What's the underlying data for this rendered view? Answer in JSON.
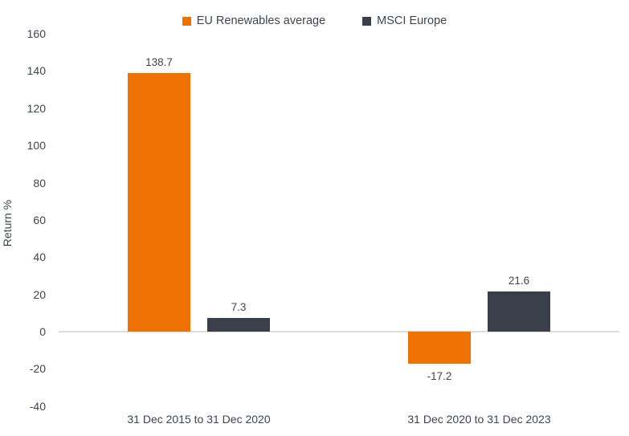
{
  "chart_data": {
    "type": "bar",
    "title": "",
    "categories": [
      "31 Dec 2015 to 31 Dec 2020",
      "31 Dec 2020 to 31 Dec 2023"
    ],
    "series": [
      {
        "name": "EU Renewables average",
        "color": "#ee7203",
        "values": [
          138.7,
          -17.2
        ]
      },
      {
        "name": "MSCI Europe",
        "color": "#3a3f4a",
        "values": [
          7.3,
          21.6
        ]
      }
    ],
    "data_labels": [
      [
        "138.7",
        "-17.2"
      ],
      [
        "7.3",
        "21.6"
      ]
    ],
    "xlabel": "",
    "ylabel": "Return %",
    "ylim": [
      -40,
      160
    ],
    "ytick_step": 20,
    "ytick_labels": [
      "160",
      "140",
      "120",
      "100",
      "80",
      "60",
      "40",
      "20",
      "0",
      "-20",
      "-40"
    ],
    "grid": false,
    "legend_position": "top"
  },
  "colors": {
    "background": "#ffffff",
    "text": "#3f4450",
    "zero_line": "#dcdcdc"
  }
}
